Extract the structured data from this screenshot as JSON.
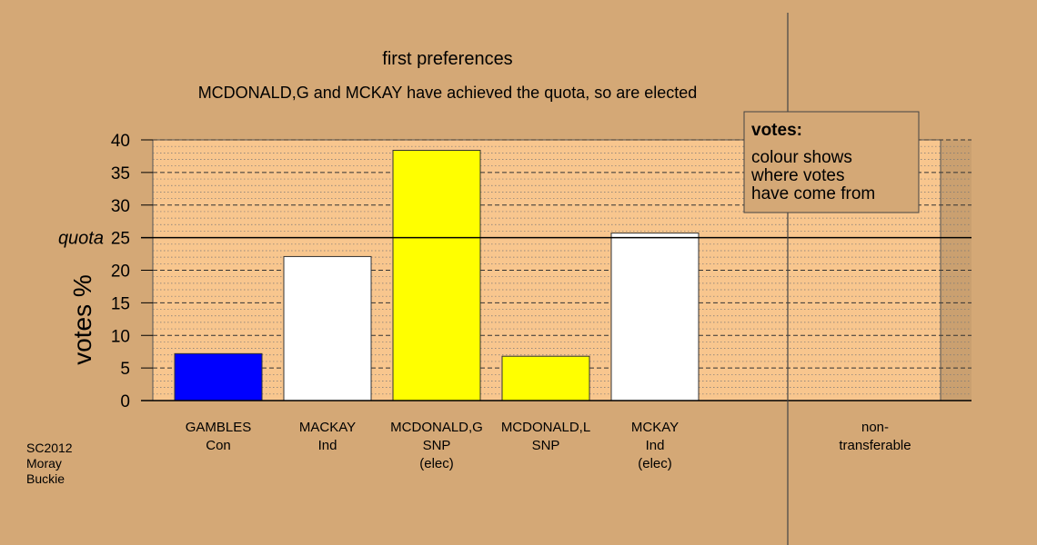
{
  "chart_data": {
    "type": "bar",
    "title": "first preferences",
    "subtitle": "MCDONALD,G and MCKAY have achieved the quota, so are elected",
    "ylabel": "votes %",
    "ylim": [
      0,
      40
    ],
    "yticks": [
      0,
      5,
      10,
      15,
      20,
      25,
      30,
      35,
      40
    ],
    "quota": {
      "label": "quota",
      "value": 25
    },
    "categories": [
      {
        "lines": [
          "GAMBLES",
          "Con"
        ],
        "value": 7.2,
        "color": "#0000ff"
      },
      {
        "lines": [
          "MACKAY",
          "Ind"
        ],
        "value": 22.1,
        "color": "#ffffff"
      },
      {
        "lines": [
          "MCDONALD,G",
          "SNP",
          "(elec)"
        ],
        "value": 38.4,
        "color": "#ffff00"
      },
      {
        "lines": [
          "MCDONALD,L",
          "SNP"
        ],
        "value": 6.8,
        "color": "#ffff00"
      },
      {
        "lines": [
          "MCKAY",
          "Ind",
          "(elec)"
        ],
        "value": 25.7,
        "color": "#ffffff"
      }
    ],
    "non_transferable": {
      "lines": [
        "non-",
        "transferable"
      ],
      "value": 0
    },
    "legend": {
      "title": "votes:",
      "lines": [
        "colour shows",
        "where votes",
        "have come from"
      ],
      "placement": "top-right"
    },
    "grid": true
  },
  "footer": {
    "lines": [
      "SC2012",
      "Moray",
      "Buckie"
    ]
  },
  "colors": {
    "background": "#d4a876",
    "plot_area": "#f8c68e",
    "nontransferable_area": "#caa070",
    "legend_box": "#d4a876"
  }
}
